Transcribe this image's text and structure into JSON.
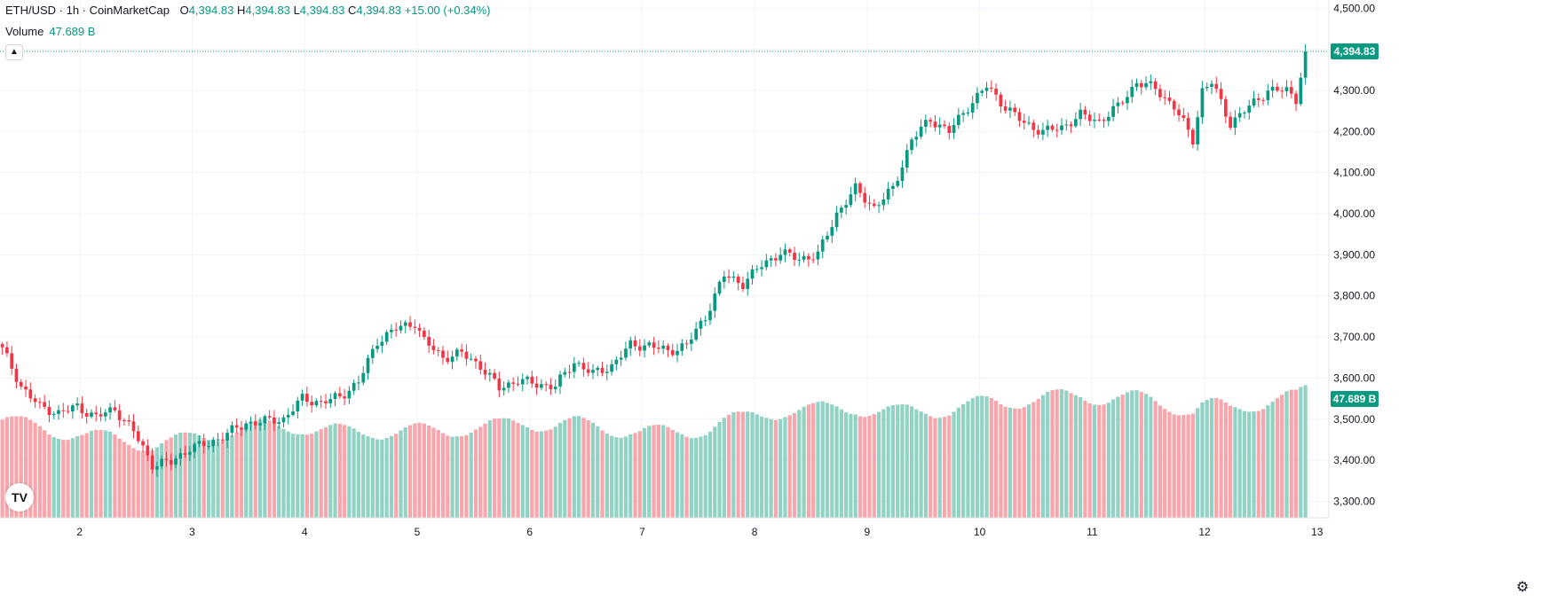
{
  "header": {
    "symbol": "ETH/USD · 1h · CoinMarketCap",
    "o_label": "O",
    "o_value": "4,394.83",
    "h_label": "H",
    "h_value": "4,394.83",
    "l_label": "L",
    "l_value": "4,394.83",
    "c_label": "C",
    "c_value": "4,394.83",
    "change": "+15.00 (+0.34%)"
  },
  "volume_legend": {
    "label": "Volume",
    "value": "47.689 B"
  },
  "icons": {
    "collapse": "chevron-up-icon",
    "logo": "tradingview-logo-icon",
    "settings": "gear-icon"
  },
  "colors": {
    "up": "#089981",
    "down": "#f23645",
    "vol_up": "#92d2c5",
    "vol_down": "#f8a6ab"
  },
  "price_label": "4,394.83",
  "volume_label": "47.689 B",
  "chart_data": {
    "type": "candlestick",
    "title": "",
    "y_axis": {
      "ticks": [
        3300,
        3400,
        3500,
        3600,
        3700,
        3800,
        3900,
        4000,
        4100,
        4200,
        4300,
        4400,
        4500
      ],
      "tick_labels": [
        "3,300.00",
        "3,400.00",
        "3,500.00",
        "3,600.00",
        "3,700.00",
        "3,800.00",
        "3,900.00",
        "4,000.00",
        "4,100.00",
        "4,200.00",
        "4,300.00",
        "4,400.00",
        "4,500.00"
      ],
      "range": [
        3260,
        4520
      ]
    },
    "x_axis": {
      "tick_labels": [
        "2",
        "3",
        "4",
        "5",
        "6",
        "7",
        "8",
        "9",
        "10",
        "11",
        "12",
        "13"
      ],
      "day_starts": [
        16.5,
        40.5,
        64.5,
        88.5,
        112.5,
        136.5,
        160.5,
        184.5,
        208.5,
        232.5,
        256.5,
        280.5
      ],
      "range": [
        -0.5,
        283
      ]
    },
    "last_price": 4394.83,
    "anchors": [
      [
        0,
        3670
      ],
      [
        4,
        3580
      ],
      [
        8,
        3530
      ],
      [
        12,
        3515
      ],
      [
        16,
        3530
      ],
      [
        20,
        3505
      ],
      [
        24,
        3525
      ],
      [
        28,
        3470
      ],
      [
        32,
        3390
      ],
      [
        36,
        3395
      ],
      [
        40,
        3430
      ],
      [
        44,
        3440
      ],
      [
        48,
        3465
      ],
      [
        52,
        3490
      ],
      [
        56,
        3495
      ],
      [
        60,
        3500
      ],
      [
        64,
        3550
      ],
      [
        68,
        3540
      ],
      [
        72,
        3555
      ],
      [
        76,
        3590
      ],
      [
        80,
        3690
      ],
      [
        84,
        3720
      ],
      [
        88,
        3735
      ],
      [
        90,
        3690
      ],
      [
        94,
        3650
      ],
      [
        98,
        3660
      ],
      [
        102,
        3630
      ],
      [
        106,
        3575
      ],
      [
        110,
        3595
      ],
      [
        114,
        3585
      ],
      [
        118,
        3580
      ],
      [
        122,
        3640
      ],
      [
        126,
        3610
      ],
      [
        130,
        3630
      ],
      [
        134,
        3680
      ],
      [
        138,
        3680
      ],
      [
        142,
        3665
      ],
      [
        146,
        3680
      ],
      [
        150,
        3750
      ],
      [
        154,
        3850
      ],
      [
        158,
        3830
      ],
      [
        162,
        3875
      ],
      [
        166,
        3905
      ],
      [
        170,
        3890
      ],
      [
        174,
        3900
      ],
      [
        178,
        4000
      ],
      [
        182,
        4060
      ],
      [
        186,
        4015
      ],
      [
        190,
        4060
      ],
      [
        194,
        4180
      ],
      [
        198,
        4230
      ],
      [
        202,
        4200
      ],
      [
        206,
        4260
      ],
      [
        210,
        4310
      ],
      [
        214,
        4260
      ],
      [
        218,
        4220
      ],
      [
        222,
        4200
      ],
      [
        226,
        4210
      ],
      [
        230,
        4240
      ],
      [
        234,
        4225
      ],
      [
        238,
        4260
      ],
      [
        242,
        4320
      ],
      [
        246,
        4305
      ],
      [
        250,
        4260
      ],
      [
        254,
        4180
      ],
      [
        256,
        4300
      ],
      [
        258,
        4320
      ],
      [
        262,
        4220
      ],
      [
        266,
        4260
      ],
      [
        270,
        4300
      ],
      [
        274,
        4300
      ],
      [
        276,
        4280
      ],
      [
        278,
        4394.83
      ]
    ],
    "volume_axis_range": [
      0,
      140
    ]
  }
}
